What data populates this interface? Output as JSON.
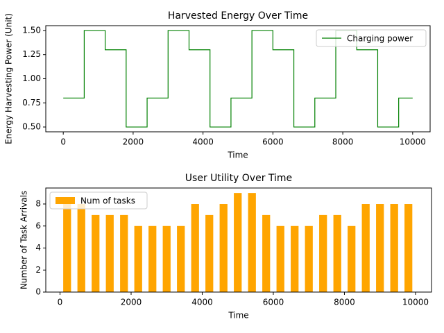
{
  "chart_data": [
    {
      "type": "line",
      "title": "Harvested Energy Over Time",
      "xlabel": "Time",
      "ylabel": "Energy Harvesting Power (Unit)",
      "drawstyle": "steps-post",
      "legend": "upper right",
      "x": [
        0,
        600,
        1200,
        1800,
        2400,
        3000,
        3600,
        4200,
        4800,
        5400,
        6000,
        6600,
        7200,
        7800,
        8400,
        9000,
        9600,
        10000
      ],
      "series": [
        {
          "name": "Charging power",
          "color": "#008000",
          "values": [
            0.8,
            1.5,
            1.3,
            0.5,
            0.8,
            1.5,
            1.3,
            0.5,
            0.8,
            1.5,
            1.3,
            0.5,
            0.8,
            1.5,
            1.3,
            0.5,
            0.8,
            0.8
          ]
        }
      ],
      "xlim": [
        -500,
        10500
      ],
      "ylim": [
        0.45,
        1.55
      ],
      "xticks": [
        0,
        2000,
        4000,
        6000,
        8000,
        10000
      ],
      "yticks": [
        {
          "value": 0.5,
          "label": "0.50"
        },
        {
          "value": 0.75,
          "label": "0.75"
        },
        {
          "value": 1.0,
          "label": "1.00"
        },
        {
          "value": 1.25,
          "label": "1.25"
        },
        {
          "value": 1.5,
          "label": "1.50"
        }
      ]
    },
    {
      "type": "bar",
      "title": "User Utility Over Time",
      "xlabel": "Time",
      "ylabel": "Number of Task Arrivals",
      "legend": "upper left",
      "x": [
        200,
        600,
        1000,
        1400,
        1800,
        2200,
        2600,
        3000,
        3400,
        3800,
        4200,
        4600,
        5000,
        5400,
        5800,
        6200,
        6600,
        7000,
        7400,
        7800,
        8200,
        8600,
        9000,
        9400,
        9800
      ],
      "series": [
        {
          "name": "Num of tasks",
          "color": "#ffa500",
          "values": [
            8,
            8,
            7,
            7,
            7,
            6,
            6,
            6,
            6,
            8,
            7,
            8,
            9,
            9,
            7,
            6,
            6,
            6,
            7,
            7,
            6,
            8,
            8,
            8,
            8
          ]
        }
      ],
      "xlim": [
        -400,
        10450
      ],
      "ylim": [
        0,
        9.45
      ],
      "xticks": [
        0,
        2000,
        4000,
        6000,
        8000,
        10000
      ],
      "yticks": [
        0,
        2,
        4,
        6,
        8
      ]
    }
  ]
}
